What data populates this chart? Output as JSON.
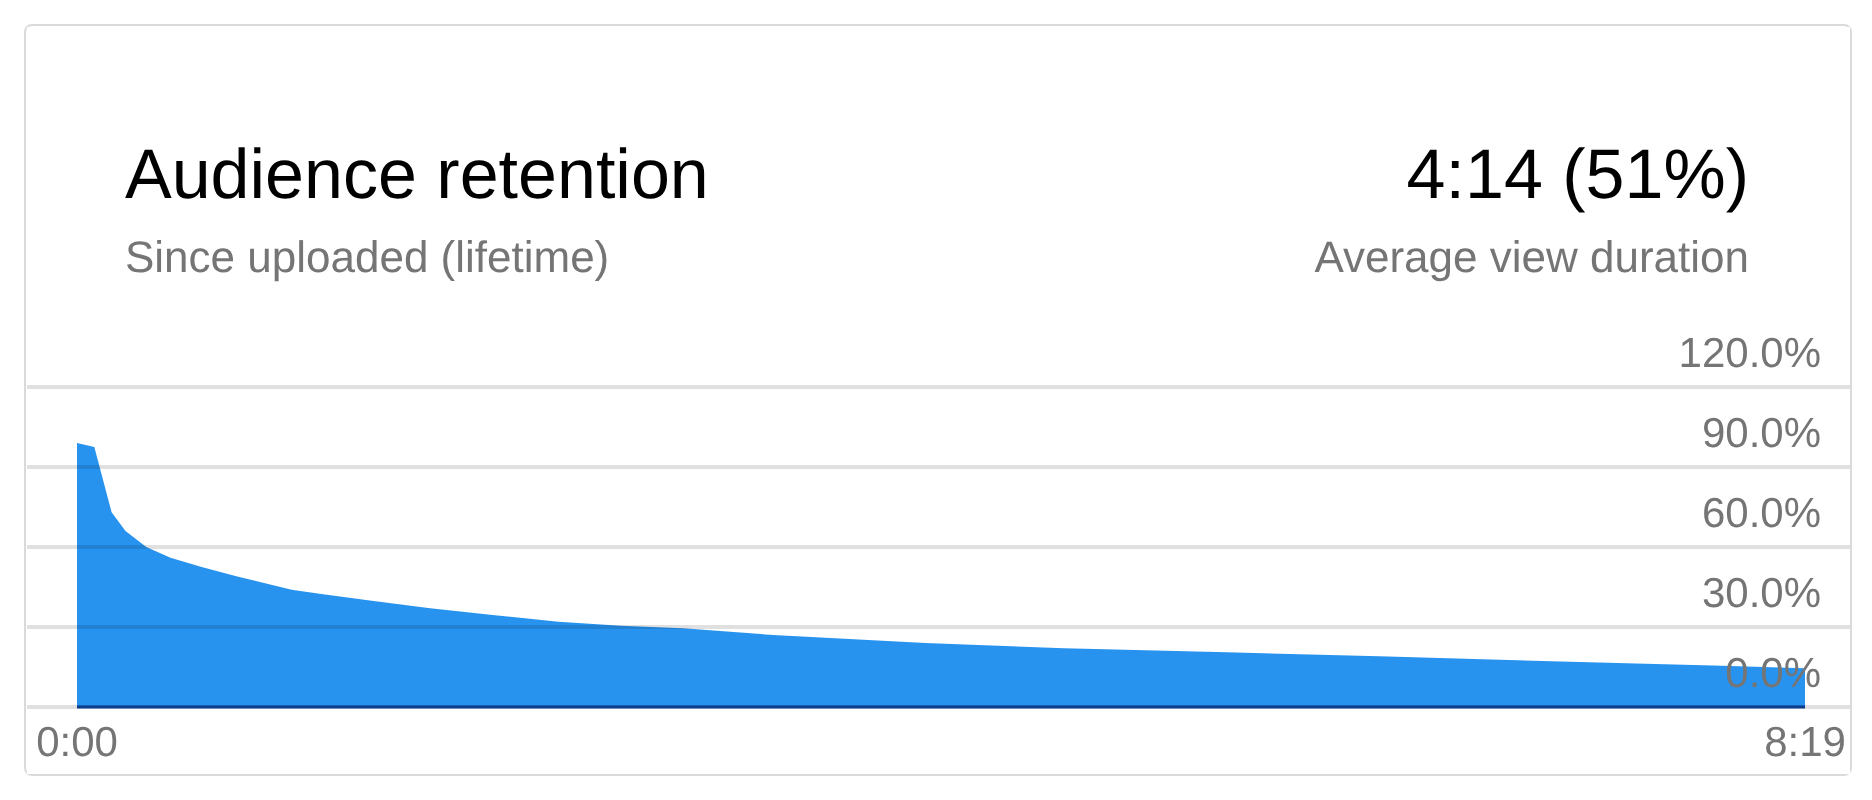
{
  "chart_data": {
    "type": "area",
    "title": "Audience retention",
    "subtitle": "Since uploaded (lifetime)",
    "annotations": [
      "4:14 (51%)",
      "Average view duration"
    ],
    "x": [
      0,
      5,
      10,
      14,
      20,
      27,
      36,
      46,
      54,
      62,
      70,
      84,
      102,
      120,
      139,
      157,
      175,
      201,
      245,
      285,
      332,
      376,
      431,
      475,
      499
    ],
    "values": [
      99,
      97.5,
      73,
      66,
      60,
      56,
      52.5,
      49,
      46.5,
      44,
      42.5,
      40,
      37,
      34.5,
      32,
      30.5,
      29.5,
      27,
      24,
      22,
      20.5,
      19,
      17,
      15.5,
      14.5
    ],
    "color": "#2793ef",
    "xlim": [
      0,
      499
    ],
    "xticks": [
      {
        "value": 0,
        "label": "0:00"
      },
      {
        "value": 499,
        "label": "8:19"
      }
    ],
    "ylim": [
      0,
      120
    ],
    "yticks": [
      {
        "value": 0,
        "label": "0.0%"
      },
      {
        "value": 30,
        "label": "30.0%"
      },
      {
        "value": 60,
        "label": "60.0%"
      },
      {
        "value": 90,
        "label": "90.0%"
      },
      {
        "value": 120,
        "label": "120.0%"
      }
    ],
    "grid": "y"
  }
}
